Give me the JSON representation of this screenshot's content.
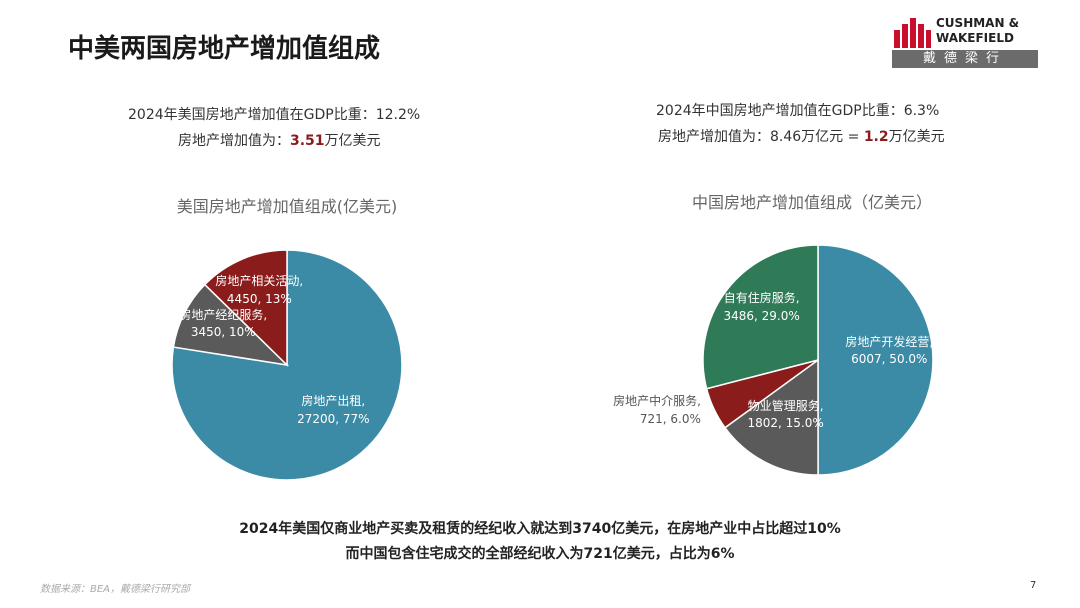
{
  "header": {
    "title": "中美两国房地产增加值组成",
    "logo_en_1": "CUSHMAN &",
    "logo_en_2": "WAKEFIELD",
    "logo_cn": "戴德梁行"
  },
  "us_summary": {
    "line1": "2024年美国房地产增加值在GDP比重：12.2%",
    "line2_pre": "房地产增加值为：",
    "line2_bold": "3.51",
    "line2_post": "万亿美元"
  },
  "cn_summary": {
    "line1": "2024年中国房地产增加值在GDP比重：6.3%",
    "line2_pre": "房地产增加值为：8.46万亿元 = ",
    "line2_bold": "1.2",
    "line2_post": "万亿美元"
  },
  "chart_data": [
    {
      "type": "pie",
      "title": "美国房地产增加值组成(亿美元)",
      "values": [
        27200,
        3450,
        4450
      ],
      "value_labels": [
        "房地产出租, 27200, 77%",
        "房地产经纪服务, 3450, 10%",
        "房地产相关活动, 4450, 13%"
      ],
      "colors": [
        "#3b8ba6",
        "#5a5a5a",
        "#8a1c1c"
      ]
    },
    {
      "type": "pie",
      "title": "中国房地产增加值组成（亿美元）",
      "values": [
        6007,
        1802,
        721,
        3486
      ],
      "value_labels": [
        "房地产开发经营, 6007, 50.0%",
        "物业管理服务, 1802, 15.0%",
        "房地产中介服务, 721, 6.0%",
        "自有住房服务, 3486, 29.0%"
      ],
      "colors": [
        "#3b8ba6",
        "#5a5a5a",
        "#8a1c1c",
        "#2f7a57"
      ]
    }
  ],
  "notes": {
    "line1": "2024年美国仅商业地产买卖及租赁的经纪收入就达到3740亿美元，在房地产业中占比超过10%",
    "line2": "而中国包含住宅成交的全部经纪收入为721亿美元，占比为6%"
  },
  "footer": {
    "source": "数据来源：BEA，戴德梁行研究部",
    "page": "7"
  }
}
